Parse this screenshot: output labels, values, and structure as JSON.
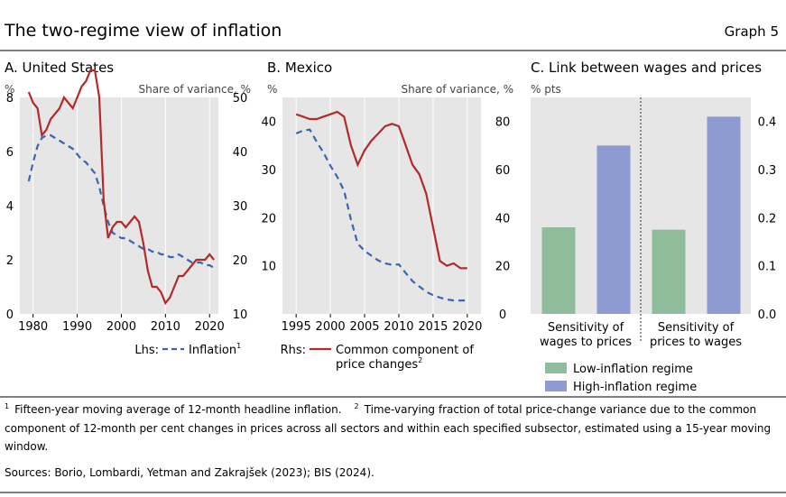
{
  "header": {
    "title": "The two-regime view of inflation",
    "graph_label": "Graph 5"
  },
  "colors": {
    "inflation": "#3a66b0",
    "common": "#b22a2a",
    "low": "#8fbc9a",
    "high": "#8d9bd2",
    "panel_bg": "#e6e6e6"
  },
  "chart_data": [
    {
      "type": "line",
      "title": "A. United States",
      "left_unit": "%",
      "right_unit": "Share of variance, %",
      "xlim": [
        1977,
        2022
      ],
      "x_ticks": [
        1980,
        1990,
        2000,
        2010,
        2020
      ],
      "ylim_left": [
        0,
        8
      ],
      "yticks_left": [
        0,
        2,
        4,
        6,
        8
      ],
      "ylim_right": [
        10,
        50
      ],
      "yticks_right": [
        10,
        20,
        30,
        40,
        50
      ],
      "legend": {
        "prefix": "Lhs:",
        "label": "Inflation",
        "sup": "1"
      },
      "series": [
        {
          "name": "Inflation",
          "axis": "left",
          "style": "dashed",
          "x": [
            1979,
            1980,
            1981,
            1982,
            1983,
            1984,
            1985,
            1986,
            1987,
            1988,
            1989,
            1990,
            1991,
            1992,
            1993,
            1994,
            1995,
            1996,
            1997,
            1998,
            1999,
            2000,
            2001,
            2002,
            2003,
            2004,
            2005,
            2006,
            2007,
            2008,
            2009,
            2010,
            2011,
            2012,
            2013,
            2014,
            2015,
            2016,
            2017,
            2018,
            2019,
            2020,
            2021
          ],
          "y": [
            4.9,
            5.6,
            6.2,
            6.5,
            6.6,
            6.6,
            6.5,
            6.4,
            6.3,
            6.2,
            6.1,
            5.9,
            5.7,
            5.6,
            5.4,
            5.2,
            4.7,
            4.0,
            3.4,
            3.0,
            2.9,
            2.8,
            2.8,
            2.7,
            2.6,
            2.5,
            2.4,
            2.4,
            2.3,
            2.3,
            2.2,
            2.2,
            2.1,
            2.1,
            2.2,
            2.1,
            2.0,
            1.9,
            1.9,
            1.9,
            1.8,
            1.8,
            1.7
          ]
        },
        {
          "name": "Common component of price changes",
          "axis": "right",
          "style": "solid",
          "x": [
            1979,
            1980,
            1981,
            1982,
            1983,
            1984,
            1985,
            1986,
            1987,
            1988,
            1989,
            1990,
            1991,
            1992,
            1993,
            1994,
            1995,
            1996,
            1997,
            1998,
            1999,
            2000,
            2001,
            2002,
            2003,
            2004,
            2005,
            2006,
            2007,
            2008,
            2009,
            2010,
            2011,
            2012,
            2013,
            2014,
            2015,
            2016,
            2017,
            2018,
            2019,
            2020,
            2021
          ],
          "y": [
            51,
            49,
            48,
            43,
            44,
            46,
            47,
            48,
            50,
            49,
            48,
            50,
            52,
            53,
            55,
            55,
            50,
            31,
            24,
            26,
            27,
            27,
            26,
            27,
            28,
            27,
            23,
            18,
            15,
            15,
            14,
            12,
            13,
            15,
            17,
            17,
            18,
            19,
            20,
            20,
            20,
            21,
            20
          ]
        }
      ]
    },
    {
      "type": "line",
      "title": "B. Mexico",
      "left_unit": "%",
      "right_unit": "Share of variance, %",
      "xlim": [
        1993,
        2022
      ],
      "x_ticks": [
        1995,
        2000,
        2005,
        2010,
        2015,
        2020
      ],
      "ylim_left": [
        0,
        45
      ],
      "yticks_left": [
        10,
        20,
        30,
        40
      ],
      "ylim_right": [
        0,
        90
      ],
      "yticks_right": [
        0,
        20,
        40,
        60,
        80
      ],
      "legend": {
        "prefix": "Rhs:",
        "label_line1": "Common component of",
        "label_line2": "price changes",
        "sup": "2"
      },
      "series": [
        {
          "name": "Inflation",
          "axis": "left",
          "style": "dashed",
          "x": [
            1995,
            1996,
            1997,
            1998,
            1999,
            2000,
            2001,
            2002,
            2003,
            2004,
            2005,
            2006,
            2007,
            2008,
            2009,
            2010,
            2011,
            2012,
            2013,
            2014,
            2015,
            2016,
            2017,
            2018,
            2019,
            2020
          ],
          "y": [
            37.5,
            38.1,
            38.3,
            35.8,
            33.5,
            30.8,
            28.5,
            25.6,
            19.6,
            14.6,
            13.1,
            12.1,
            11.1,
            10.5,
            10.2,
            10.3,
            8.5,
            6.8,
            5.7,
            4.6,
            3.9,
            3.4,
            3.0,
            2.8,
            2.8,
            2.8
          ]
        },
        {
          "name": "Common component of price changes",
          "axis": "right",
          "style": "solid",
          "x": [
            1995,
            1996,
            1997,
            1998,
            1999,
            2000,
            2001,
            2002,
            2003,
            2004,
            2005,
            2006,
            2007,
            2008,
            2009,
            2010,
            2011,
            2012,
            2013,
            2014,
            2015,
            2016,
            2017,
            2018,
            2019,
            2020
          ],
          "y": [
            83,
            82,
            81,
            81,
            82,
            83,
            84,
            82,
            70,
            62,
            68,
            72,
            75,
            78,
            79,
            78,
            70,
            62,
            58,
            50,
            36,
            22,
            20,
            21,
            19,
            19
          ]
        }
      ]
    },
    {
      "type": "bar",
      "title": "C. Link between wages and prices",
      "left_unit": "% pts",
      "ylim": [
        0,
        0.45
      ],
      "yticks": [
        0.0,
        0.1,
        0.2,
        0.3,
        0.4
      ],
      "categories": [
        "Sensitivity of wages to prices",
        "Sensitivity of prices to wages"
      ],
      "category_lines": [
        [
          "Sensitivity of",
          "wages to prices"
        ],
        [
          "Sensitivity of",
          "prices to wages"
        ]
      ],
      "series": [
        {
          "name": "Low-inflation regime",
          "values": [
            0.18,
            0.175
          ]
        },
        {
          "name": "High-inflation regime",
          "values": [
            0.35,
            0.41
          ]
        }
      ]
    }
  ],
  "footnotes": {
    "n1_mark": "1",
    "n1": "Fifteen-year moving average of 12-month headline inflation.",
    "n2_mark": "2",
    "n2_line1": "Time-varying fraction of total price-change variance due to the common",
    "n2_line2": "component of 12-month per cent changes in prices across all sectors and within each specified subsector, estimated using a 15-year moving",
    "n2_line3": "window.",
    "sources": "Sources: Borio, Lombardi, Yetman and Zakrajšek (2023); BIS (2024)."
  }
}
